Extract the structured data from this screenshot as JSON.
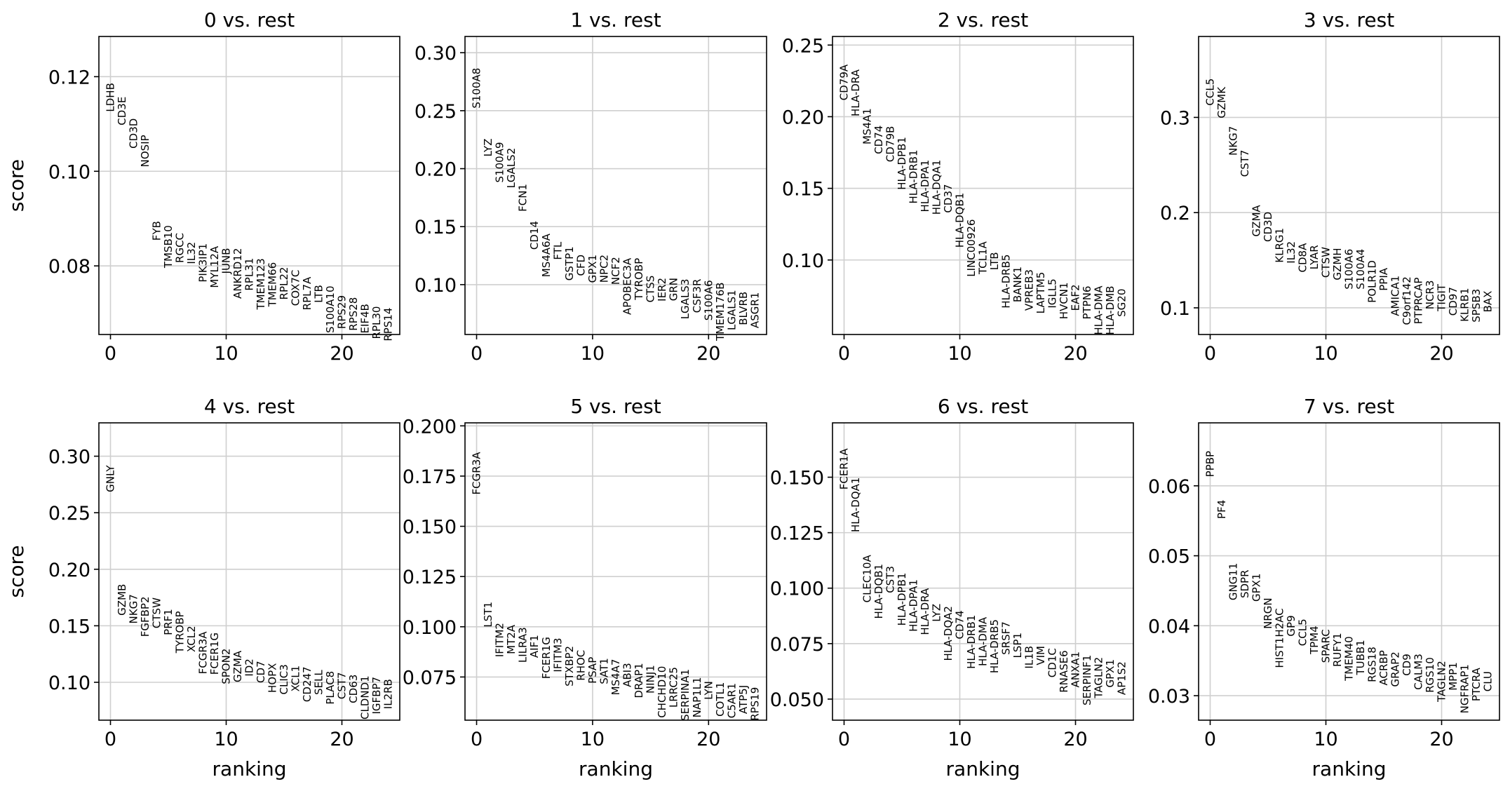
{
  "chart_data": [
    {
      "type": "scatter",
      "title": "0 vs. rest",
      "ylabel": "score",
      "xlabel": "",
      "xlim": [
        -1,
        25
      ],
      "ylim": [
        0.0655,
        0.1285
      ],
      "xticks": [
        0,
        10,
        20
      ],
      "yticks": [
        0.08,
        0.1,
        0.12
      ],
      "ytick_labels": [
        "0.08",
        "0.10",
        "0.12"
      ],
      "grid": true,
      "genes": [
        "LDHB",
        "CD3E",
        "CD3D",
        "NOSIP",
        "FYB",
        "TMSB10",
        "RGCC",
        "IL32",
        "PIK3IP1",
        "MYL12A",
        "JUNB",
        "ANKRD12",
        "RPL31",
        "TMEM123",
        "TMEM66",
        "RPL22",
        "COX7C",
        "RPL7A",
        "LTB",
        "S100A10",
        "RPS29",
        "RPS28",
        "EIF4B",
        "RPL30",
        "RPS14"
      ],
      "scores": [
        0.1187,
        0.1158,
        0.1112,
        0.1077,
        0.0895,
        0.0886,
        0.087,
        0.0851,
        0.0848,
        0.0842,
        0.0838,
        0.0838,
        0.0817,
        0.0816,
        0.0808,
        0.0798,
        0.0792,
        0.0777,
        0.076,
        0.0758,
        0.0738,
        0.0734,
        0.072,
        0.0715,
        0.0712
      ]
    },
    {
      "type": "scatter",
      "title": "1 vs. rest",
      "ylabel": "",
      "xlabel": "",
      "xlim": [
        -1,
        25
      ],
      "ylim": [
        0.057,
        0.314
      ],
      "xticks": [
        0,
        10,
        20
      ],
      "yticks": [
        0.1,
        0.15,
        0.2,
        0.25,
        0.3
      ],
      "ytick_labels": [
        "0.10",
        "0.15",
        "0.20",
        "0.25",
        "0.30"
      ],
      "grid": true,
      "genes": [
        "S100A8",
        "LYZ",
        "S100A9",
        "LGALS2",
        "FCN1",
        "CD14",
        "MS4A6A",
        "FTL",
        "GSTP1",
        "CFD",
        "GPX1",
        "NPC2",
        "NCF2",
        "APOBEC3A",
        "TYROBP",
        "CTSS",
        "IER2",
        "GRN",
        "LGALS3",
        "CSF3R",
        "S100A6",
        "TMEM176B",
        "LGALS1",
        "BLVRB",
        "ASGR1"
      ],
      "scores": [
        0.287,
        0.226,
        0.223,
        0.218,
        0.187,
        0.155,
        0.144,
        0.137,
        0.133,
        0.126,
        0.126,
        0.126,
        0.124,
        0.123,
        0.123,
        0.108,
        0.106,
        0.106,
        0.105,
        0.105,
        0.104,
        0.102,
        0.0955,
        0.094,
        0.0935
      ]
    },
    {
      "type": "scatter",
      "title": "2 vs. rest",
      "ylabel": "",
      "xlabel": "",
      "xlim": [
        -1,
        25
      ],
      "ylim": [
        0.048,
        0.256
      ],
      "xticks": [
        0,
        10,
        20
      ],
      "yticks": [
        0.1,
        0.15,
        0.2,
        0.25
      ],
      "ytick_labels": [
        "0.10",
        "0.15",
        "0.20",
        "0.25"
      ],
      "grid": true,
      "genes": [
        "CD79A",
        "HLA-DRA",
        "MS4A1",
        "CD74",
        "CD79B",
        "HLA-DPB1",
        "HLA-DRB1",
        "HLA-DPA1",
        "HLA-DQA1",
        "CD37",
        "HLA-DQB1",
        "LINC00926",
        "TCL1A",
        "LTB",
        "HLA-DRB5",
        "BANK1",
        "VPREB3",
        "LAPTM5",
        "IGLL5",
        "HVCN1",
        "EAF2",
        "PTPN6",
        "HLA-DMA",
        "HLA-DMB",
        "SG20"
      ],
      "scores": [
        0.2365,
        0.233,
        0.206,
        0.194,
        0.1935,
        0.186,
        0.177,
        0.17,
        0.17,
        0.153,
        0.147,
        0.1285,
        0.113,
        0.1055,
        0.104,
        0.0955,
        0.0935,
        0.0917,
        0.087,
        0.0845,
        0.083,
        0.082,
        0.082,
        0.082,
        0.08
      ]
    },
    {
      "type": "scatter",
      "title": "3 vs. rest",
      "ylabel": "",
      "xlabel": "",
      "xlim": [
        -1,
        25
      ],
      "ylim": [
        0.072,
        0.385
      ],
      "xticks": [
        0,
        10,
        20
      ],
      "yticks": [
        0.1,
        0.2,
        0.3
      ],
      "ytick_labels": [
        "0.1",
        "0.2",
        "0.3"
      ],
      "grid": true,
      "genes": [
        "CCL5",
        "GZMK",
        "NKG7",
        "CST7",
        "GZMA",
        "CD3D",
        "KLRG1",
        "IL32",
        "CD8A",
        "LYAR",
        "CTSW",
        "GZMH",
        "S100A6",
        "S100A4",
        "POLR1D",
        "PPIA",
        "AMICA1",
        "C9orf142",
        "PTPRCAP",
        "NCR3",
        "TIGIT",
        "CD97",
        "KLRB1",
        "SPSB3",
        "BAX"
      ],
      "scores": [
        0.341,
        0.332,
        0.291,
        0.266,
        0.208,
        0.201,
        0.184,
        0.17,
        0.168,
        0.166,
        0.164,
        0.163,
        0.162,
        0.162,
        0.15,
        0.142,
        0.134,
        0.133,
        0.132,
        0.129,
        0.125,
        0.122,
        0.121,
        0.12,
        0.118
      ]
    },
    {
      "type": "scatter",
      "title": "4 vs. rest",
      "ylabel": "score",
      "xlabel": "ranking",
      "xlim": [
        -1,
        25
      ],
      "ylim": [
        0.0665,
        0.3295
      ],
      "xticks": [
        0,
        10,
        20
      ],
      "yticks": [
        0.1,
        0.15,
        0.2,
        0.25,
        0.3
      ],
      "ytick_labels": [
        "0.10",
        "0.15",
        "0.20",
        "0.25",
        "0.30"
      ],
      "grid": true,
      "genes": [
        "GNLY",
        "GZMB",
        "NKG7",
        "FGFBP2",
        "CTSW",
        "PRF1",
        "TYROBP",
        "XCL2",
        "FCGR3A",
        "FCER1G",
        "SPON2",
        "GZMA",
        "ID2",
        "CD7",
        "HOPX",
        "CLIC3",
        "XCL1",
        "CD247",
        "SELL",
        "PLAC8",
        "CST7",
        "CD63",
        "CLDND1",
        "IGFBP7",
        "IL2RB"
      ],
      "scores": [
        0.292,
        0.187,
        0.178,
        0.176,
        0.175,
        0.165,
        0.163,
        0.15,
        0.145,
        0.144,
        0.13,
        0.128,
        0.121,
        0.119,
        0.117,
        0.116,
        0.115,
        0.114,
        0.111,
        0.11,
        0.109,
        0.107,
        0.106,
        0.105,
        0.103
      ]
    },
    {
      "type": "scatter",
      "title": "5 vs. rest",
      "ylabel": "",
      "xlabel": "ranking",
      "xlim": [
        -1,
        25
      ],
      "ylim": [
        0.0535,
        0.2015
      ],
      "xticks": [
        0,
        10,
        20
      ],
      "yticks": [
        0.075,
        0.1,
        0.125,
        0.15,
        0.175,
        0.2
      ],
      "ytick_labels": [
        "0.075",
        "0.100",
        "0.125",
        "0.150",
        "0.175",
        "0.200"
      ],
      "grid": true,
      "genes": [
        "FCGR3A",
        "LST1",
        "IFITM2",
        "MT2A",
        "LILRA3",
        "AIF1",
        "FCER1G",
        "IFITM3",
        "STXBP2",
        "RHOC",
        "PSAP",
        "SAT1",
        "MS4A7",
        "ABI3",
        "DRAP1",
        "NINJ1",
        "CHCHD10",
        "LRRC25",
        "SERPINA1",
        "NAP1L1",
        "LYN",
        "COTL1",
        "C5AR1",
        "ATP5J",
        "RPS19"
      ],
      "scores": [
        0.187,
        0.1125,
        0.102,
        0.101,
        0.0998,
        0.096,
        0.095,
        0.0945,
        0.0905,
        0.0885,
        0.085,
        0.0845,
        0.084,
        0.082,
        0.082,
        0.081,
        0.0805,
        0.08,
        0.079,
        0.075,
        0.073,
        0.0725,
        0.072,
        0.071,
        0.07
      ]
    },
    {
      "type": "scatter",
      "title": "6 vs. rest",
      "ylabel": "",
      "xlabel": "ranking",
      "xlim": [
        -1,
        25
      ],
      "ylim": [
        0.0405,
        0.1745
      ],
      "xticks": [
        0,
        10,
        20
      ],
      "yticks": [
        0.05,
        0.075,
        0.1,
        0.125,
        0.15
      ],
      "ytick_labels": [
        "0.050",
        "0.075",
        "0.100",
        "0.125",
        "0.150"
      ],
      "grid": true,
      "genes": [
        "FCER1A",
        "HLA-DQA1",
        "CLEC10A",
        "HLA-DQB1",
        "CST3",
        "HLA-DPB1",
        "HLA-DPA1",
        "HLA-DRA",
        "LYZ",
        "HLA-DQA2",
        "CD74",
        "HLA-DRB1",
        "HLA-DMA",
        "HLA-DRB5",
        "SRSF7",
        "LSP1",
        "IL1B",
        "VIM",
        "CD1C",
        "RNASE6",
        "ANXA1",
        "SERPINF1",
        "TAGLN2",
        "GPX1",
        "AP1S2"
      ],
      "scores": [
        0.163,
        0.15,
        0.115,
        0.111,
        0.11,
        0.107,
        0.104,
        0.1,
        0.093,
        0.092,
        0.09,
        0.088,
        0.087,
        0.086,
        0.085,
        0.08,
        0.074,
        0.074,
        0.073,
        0.072,
        0.0715,
        0.07,
        0.069,
        0.068,
        0.067
      ]
    },
    {
      "type": "scatter",
      "title": "7 vs. rest",
      "ylabel": "",
      "xlabel": "ranking",
      "xlim": [
        -1,
        25
      ],
      "ylim": [
        0.0265,
        0.069
      ],
      "xticks": [
        0,
        10,
        20
      ],
      "yticks": [
        0.03,
        0.04,
        0.05,
        0.06
      ],
      "ytick_labels": [
        "0.03",
        "0.04",
        "0.05",
        "0.06"
      ],
      "grid": true,
      "genes": [
        "PPBP",
        "PF4",
        "GNG11",
        "SDPR",
        "GPX1",
        "NRGN",
        "HIST1H2AC",
        "GP9",
        "CCL5",
        "TPM4",
        "SPARC",
        "RUFY1",
        "TMEM40",
        "TUBB1",
        "RGS18",
        "ACRBP",
        "GRAP2",
        "CD9",
        "CALM3",
        "RGS10",
        "TAGLN2",
        "MPP1",
        "NGFRAP1",
        "PTCRA",
        "CLU"
      ],
      "scores": [
        0.065,
        0.058,
        0.049,
        0.048,
        0.0475,
        0.044,
        0.0425,
        0.0415,
        0.041,
        0.04,
        0.0395,
        0.039,
        0.0385,
        0.038,
        0.037,
        0.0365,
        0.0363,
        0.036,
        0.036,
        0.0355,
        0.035,
        0.0348,
        0.0345,
        0.034,
        0.0335
      ]
    }
  ]
}
